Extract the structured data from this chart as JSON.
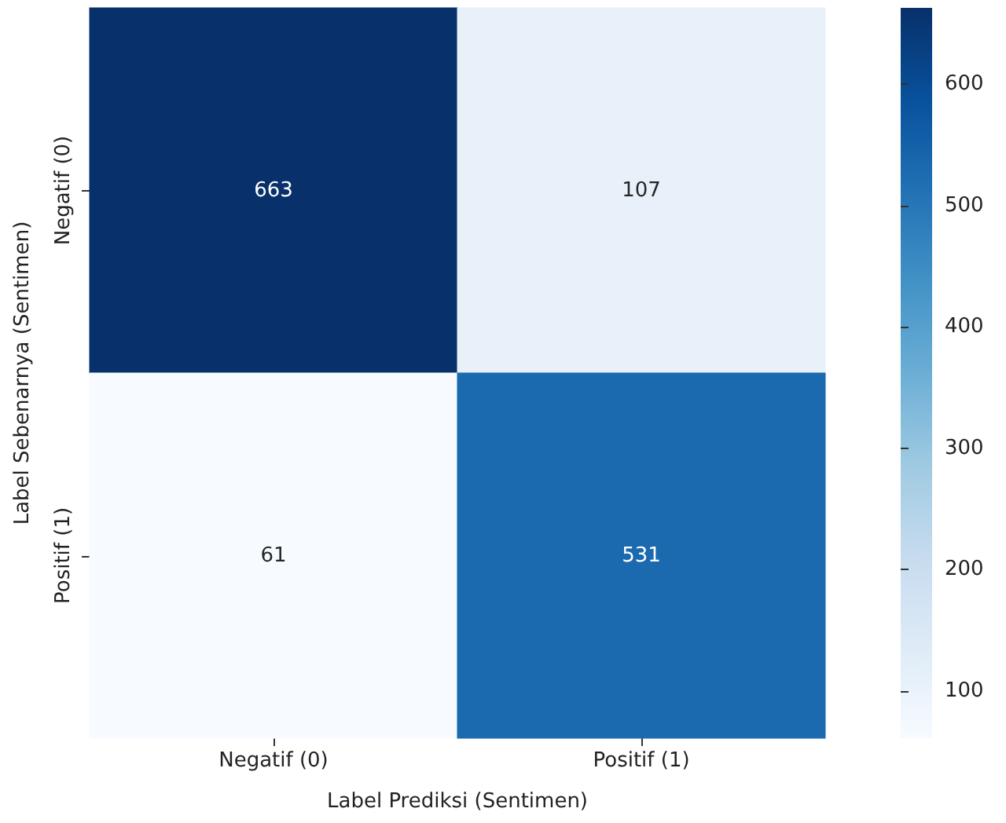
{
  "chart_data": {
    "type": "heatmap",
    "xlabel": "Label Prediksi (Sentimen)",
    "ylabel": "Label Sebenarnya (Sentimen)",
    "categories": [
      "Negatif (0)",
      "Positif (1)"
    ],
    "y_categories": [
      "Negatif (0)",
      "Positif (1)"
    ],
    "cells": [
      [
        663,
        107
      ],
      [
        61,
        531
      ]
    ],
    "data_labels": true,
    "clim": [
      61,
      663
    ],
    "cticks": [
      100,
      200,
      300,
      400,
      500,
      600
    ]
  }
}
